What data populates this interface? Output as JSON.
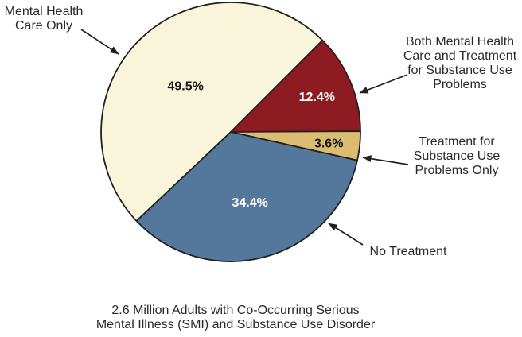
{
  "chart_data": {
    "type": "pie",
    "title": "",
    "caption_line1": "2.6 Million Adults with Co-Occurring Serious",
    "caption_line2": "Mental Illness (SMI) and Substance Use Disorder",
    "start_angle_deg": 45,
    "outline_color": "#231f20",
    "background_color": "#ffffff",
    "legend_position": "callout-labels-with-arrows",
    "slices": [
      {
        "name": "both-mental-health-and-substance",
        "label": "Both Mental Health Care and Treatment for Substance Use Problems",
        "value": 12.4,
        "display": "12.4%",
        "color": "#8e1b21",
        "text_color": "#ffffff",
        "label_radius_factor": 0.72
      },
      {
        "name": "substance-use-only",
        "label": "Treatment for Substance Use Problems Only",
        "value": 3.6,
        "display": "3.6%",
        "color": "#dbbd72",
        "text_color": "#1a1a1a",
        "label_radius_factor": 0.76
      },
      {
        "name": "no-treatment",
        "label": "No Treatment",
        "value": 34.4,
        "display": "34.4%",
        "color": "#54789b",
        "text_color": "#ffffff",
        "label_radius_factor": 0.56
      },
      {
        "name": "mental-health-only",
        "label": "Mental Health Care Only",
        "value": 49.5,
        "display": "49.5%",
        "color": "#f8f5da",
        "text_color": "#1a1a1a",
        "label_radius_factor": 0.5
      }
    ]
  },
  "callouts": {
    "mental_health_only": {
      "lines": [
        "Mental Health",
        "Care Only"
      ]
    },
    "both": {
      "lines": [
        "Both Mental Health",
        "Care and Treatment",
        "for Substance Use",
        "Problems"
      ]
    },
    "substance_only": {
      "lines": [
        "Treatment for",
        "Substance Use",
        "Problems Only"
      ]
    },
    "no_treatment": {
      "lines": [
        "No Treatment"
      ]
    }
  },
  "caption": {
    "line1": "2.6 Million Adults with Co-Occurring Serious",
    "line2": "Mental Illness (SMI) and Substance Use Disorder"
  }
}
